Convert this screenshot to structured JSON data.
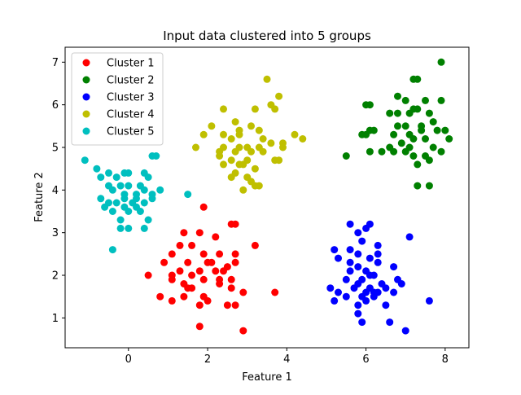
{
  "chart_data": {
    "type": "scatter",
    "title": "Input data clustered into 5 groups",
    "xlabel": "Feature 1",
    "ylabel": "Feature 2",
    "xlim": [
      -1.6,
      8.6
    ],
    "ylim": [
      0.3,
      7.35
    ],
    "xticks": [
      0,
      2,
      4,
      6,
      8
    ],
    "yticks": [
      1,
      2,
      3,
      4,
      5,
      6,
      7
    ],
    "grid": false,
    "legend_position": "top-left",
    "series": [
      {
        "name": "Cluster 1",
        "color": "#ff0000",
        "points": [
          [
            1.9,
            3.6
          ],
          [
            2.6,
            3.2
          ],
          [
            2.7,
            3.2
          ],
          [
            1.4,
            3.0
          ],
          [
            1.8,
            3.0
          ],
          [
            2.2,
            2.9
          ],
          [
            1.3,
            2.7
          ],
          [
            1.6,
            2.7
          ],
          [
            1.1,
            2.5
          ],
          [
            1.9,
            2.5
          ],
          [
            2.3,
            2.5
          ],
          [
            2.7,
            2.5
          ],
          [
            3.2,
            2.7
          ],
          [
            0.9,
            2.3
          ],
          [
            1.5,
            2.3
          ],
          [
            2.0,
            2.3
          ],
          [
            2.5,
            2.2
          ],
          [
            2.7,
            2.3
          ],
          [
            0.5,
            2.0
          ],
          [
            1.1,
            2.0
          ],
          [
            1.3,
            2.1
          ],
          [
            1.6,
            2.0
          ],
          [
            1.8,
            2.1
          ],
          [
            2.2,
            2.1
          ],
          [
            2.4,
            2.1
          ],
          [
            1.1,
            1.9
          ],
          [
            1.4,
            1.8
          ],
          [
            1.6,
            1.7
          ],
          [
            1.9,
            1.9
          ],
          [
            2.3,
            1.9
          ],
          [
            2.6,
            1.9
          ],
          [
            1.5,
            1.7
          ],
          [
            2.3,
            1.8
          ],
          [
            2.6,
            1.7
          ],
          [
            0.8,
            1.5
          ],
          [
            1.4,
            1.5
          ],
          [
            1.9,
            1.5
          ],
          [
            2.9,
            1.6
          ],
          [
            1.1,
            1.4
          ],
          [
            2.0,
            1.4
          ],
          [
            3.7,
            1.6
          ],
          [
            1.8,
            1.3
          ],
          [
            2.5,
            1.3
          ],
          [
            2.7,
            1.3
          ],
          [
            1.8,
            0.8
          ],
          [
            2.9,
            0.7
          ],
          [
            2.1,
            2.3
          ]
        ]
      },
      {
        "name": "Cluster 2",
        "color": "#008000",
        "points": [
          [
            7.9,
            7.0
          ],
          [
            7.2,
            6.6
          ],
          [
            7.3,
            6.6
          ],
          [
            6.0,
            6.0
          ],
          [
            6.1,
            6.0
          ],
          [
            6.8,
            6.2
          ],
          [
            7.0,
            6.1
          ],
          [
            7.5,
            6.1
          ],
          [
            7.9,
            6.1
          ],
          [
            6.6,
            5.8
          ],
          [
            6.8,
            5.8
          ],
          [
            7.1,
            5.8
          ],
          [
            7.2,
            5.9
          ],
          [
            7.3,
            5.9
          ],
          [
            7.6,
            5.8
          ],
          [
            7.7,
            5.6
          ],
          [
            6.8,
            5.5
          ],
          [
            7.0,
            5.5
          ],
          [
            7.4,
            5.5
          ],
          [
            6.7,
            5.3
          ],
          [
            7.1,
            5.3
          ],
          [
            7.4,
            5.4
          ],
          [
            7.8,
            5.4
          ],
          [
            5.9,
            5.3
          ],
          [
            6.1,
            5.4
          ],
          [
            6.2,
            5.4
          ],
          [
            8.0,
            5.4
          ],
          [
            7.2,
            5.2
          ],
          [
            7.5,
            5.2
          ],
          [
            8.1,
            5.2
          ],
          [
            6.6,
            5.0
          ],
          [
            6.9,
            5.1
          ],
          [
            7.1,
            5.0
          ],
          [
            7.7,
            5.0
          ],
          [
            6.1,
            4.9
          ],
          [
            6.4,
            4.9
          ],
          [
            6.7,
            4.9
          ],
          [
            7.0,
            4.9
          ],
          [
            7.2,
            4.8
          ],
          [
            7.5,
            4.8
          ],
          [
            7.9,
            4.9
          ],
          [
            5.5,
            4.8
          ],
          [
            7.3,
            4.6
          ],
          [
            7.6,
            4.7
          ],
          [
            7.3,
            4.1
          ],
          [
            7.6,
            4.1
          ],
          [
            6.0,
            5.3
          ]
        ]
      },
      {
        "name": "Cluster 3",
        "color": "#0000ff",
        "points": [
          [
            6.1,
            3.2
          ],
          [
            5.6,
            3.2
          ],
          [
            5.8,
            3.0
          ],
          [
            6.0,
            3.1
          ],
          [
            7.1,
            2.9
          ],
          [
            5.9,
            2.8
          ],
          [
            6.3,
            2.7
          ],
          [
            5.2,
            2.6
          ],
          [
            5.6,
            2.6
          ],
          [
            5.8,
            2.5
          ],
          [
            6.1,
            2.4
          ],
          [
            6.3,
            2.5
          ],
          [
            5.3,
            2.4
          ],
          [
            5.6,
            2.3
          ],
          [
            5.8,
            2.2
          ],
          [
            6.0,
            2.1
          ],
          [
            6.3,
            2.3
          ],
          [
            6.7,
            2.2
          ],
          [
            5.6,
            2.1
          ],
          [
            5.9,
            1.9
          ],
          [
            6.2,
            2.0
          ],
          [
            5.5,
            1.9
          ],
          [
            5.8,
            1.8
          ],
          [
            6.1,
            1.7
          ],
          [
            6.4,
            1.8
          ],
          [
            6.8,
            1.9
          ],
          [
            6.9,
            1.8
          ],
          [
            5.1,
            1.7
          ],
          [
            5.7,
            1.7
          ],
          [
            6.0,
            1.6
          ],
          [
            6.3,
            1.6
          ],
          [
            6.5,
            1.7
          ],
          [
            6.7,
            1.6
          ],
          [
            5.3,
            1.6
          ],
          [
            5.5,
            1.5
          ],
          [
            5.9,
            1.5
          ],
          [
            6.2,
            1.5
          ],
          [
            5.2,
            1.4
          ],
          [
            5.8,
            1.3
          ],
          [
            6.0,
            1.4
          ],
          [
            6.5,
            1.3
          ],
          [
            7.6,
            1.4
          ],
          [
            5.8,
            1.1
          ],
          [
            5.9,
            0.9
          ],
          [
            6.6,
            0.9
          ],
          [
            7.0,
            0.7
          ],
          [
            6.2,
            1.6
          ],
          [
            6.1,
            2.0
          ]
        ]
      },
      {
        "name": "Cluster 4",
        "color": "#bfbf00",
        "points": [
          [
            3.5,
            6.6
          ],
          [
            3.8,
            6.2
          ],
          [
            3.6,
            6.0
          ],
          [
            3.2,
            5.9
          ],
          [
            3.7,
            5.9
          ],
          [
            2.4,
            5.9
          ],
          [
            2.7,
            5.6
          ],
          [
            2.1,
            5.5
          ],
          [
            3.1,
            5.5
          ],
          [
            2.8,
            5.4
          ],
          [
            3.3,
            5.4
          ],
          [
            1.9,
            5.3
          ],
          [
            2.4,
            5.3
          ],
          [
            2.8,
            5.3
          ],
          [
            4.2,
            5.3
          ],
          [
            2.6,
            5.2
          ],
          [
            3.4,
            5.2
          ],
          [
            4.4,
            5.2
          ],
          [
            2.4,
            5.0
          ],
          [
            2.8,
            5.0
          ],
          [
            3.0,
            5.0
          ],
          [
            3.3,
            5.0
          ],
          [
            3.6,
            5.1
          ],
          [
            3.9,
            5.1
          ],
          [
            1.7,
            5.0
          ],
          [
            2.3,
            4.9
          ],
          [
            2.7,
            4.9
          ],
          [
            3.1,
            4.9
          ],
          [
            3.4,
            4.9
          ],
          [
            3.9,
            5.0
          ],
          [
            2.3,
            4.8
          ],
          [
            2.6,
            4.7
          ],
          [
            3.0,
            4.7
          ],
          [
            3.7,
            4.7
          ],
          [
            2.8,
            4.6
          ],
          [
            3.2,
            4.5
          ],
          [
            2.9,
            4.6
          ],
          [
            2.4,
            4.6
          ],
          [
            3.8,
            4.7
          ],
          [
            2.7,
            4.4
          ],
          [
            3.0,
            4.3
          ],
          [
            3.1,
            4.2
          ],
          [
            3.2,
            4.1
          ],
          [
            3.3,
            4.1
          ],
          [
            2.9,
            4.0
          ],
          [
            2.6,
            4.3
          ]
        ]
      },
      {
        "name": "Cluster 5",
        "color": "#00bfbf",
        "points": [
          [
            0.7,
            4.8
          ],
          [
            0.6,
            4.8
          ],
          [
            -1.1,
            4.7
          ],
          [
            -0.8,
            4.5
          ],
          [
            -0.5,
            4.4
          ],
          [
            -0.1,
            4.4
          ],
          [
            0.0,
            4.4
          ],
          [
            0.4,
            4.4
          ],
          [
            -0.7,
            4.3
          ],
          [
            -0.3,
            4.3
          ],
          [
            0.5,
            4.3
          ],
          [
            -0.5,
            4.1
          ],
          [
            -0.2,
            4.1
          ],
          [
            0.0,
            4.1
          ],
          [
            0.4,
            4.0
          ],
          [
            0.8,
            4.0
          ],
          [
            -0.4,
            4.0
          ],
          [
            -0.1,
            3.9
          ],
          [
            0.2,
            3.9
          ],
          [
            1.5,
            3.9
          ],
          [
            -0.7,
            3.8
          ],
          [
            -0.1,
            3.8
          ],
          [
            0.2,
            3.8
          ],
          [
            0.6,
            3.8
          ],
          [
            -0.5,
            3.7
          ],
          [
            0.1,
            3.7
          ],
          [
            0.4,
            3.7
          ],
          [
            -0.6,
            3.6
          ],
          [
            -0.1,
            3.6
          ],
          [
            0.2,
            3.6
          ],
          [
            -0.4,
            3.5
          ],
          [
            0.0,
            3.5
          ],
          [
            0.3,
            3.5
          ],
          [
            -0.2,
            3.3
          ],
          [
            0.5,
            3.3
          ],
          [
            -0.2,
            3.1
          ],
          [
            0.0,
            3.1
          ],
          [
            0.4,
            3.1
          ],
          [
            -0.4,
            2.6
          ],
          [
            0.6,
            3.9
          ],
          [
            0.3,
            4.1
          ],
          [
            -0.3,
            3.7
          ]
        ]
      }
    ]
  }
}
